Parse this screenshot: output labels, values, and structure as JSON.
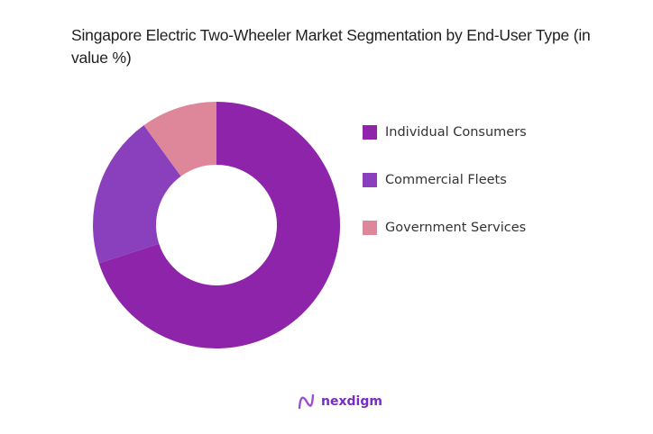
{
  "title": "Singapore Electric Two-Wheeler Market Segmentation by End-User Type (in value %)",
  "chart_data": {
    "type": "pie",
    "subtype": "donut",
    "title": "Singapore Electric Two-Wheeler Market Segmentation by End-User Type (in value %)",
    "categories": [
      "Individual Consumers",
      "Commercial Fleets",
      "Government Services"
    ],
    "values": [
      70,
      20,
      10
    ],
    "colors": [
      "#8e24aa",
      "#8a3fbd",
      "#de879b"
    ],
    "legend_position": "right",
    "start_angle": "top, clockwise"
  },
  "legend": {
    "items": [
      {
        "label": "Individual Consumers",
        "color": "#8e24aa"
      },
      {
        "label": "Commercial Fleets",
        "color": "#8a3fbd"
      },
      {
        "label": "Government Services",
        "color": "#de879b"
      }
    ]
  },
  "logo": {
    "text": "nexdigm",
    "icon": "nexdigm-wave-icon"
  }
}
